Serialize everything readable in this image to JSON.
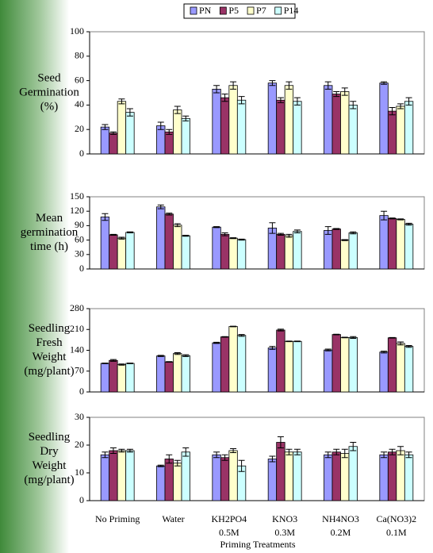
{
  "chart_data": [
    {
      "type": "bar",
      "ylabel": [
        "Seed",
        "Germination",
        "(%)"
      ],
      "ylim": [
        0,
        100
      ],
      "yticks": [
        0,
        20,
        40,
        60,
        80,
        100
      ],
      "legend": "top",
      "series": [
        {
          "name": "PN",
          "color": "#9999ff",
          "values": [
            22,
            23,
            53,
            58,
            56,
            58
          ],
          "errors": [
            2,
            3,
            3,
            2,
            3,
            1
          ]
        },
        {
          "name": "P5",
          "color": "#993366",
          "values": [
            17,
            18,
            46,
            44,
            49,
            35
          ],
          "errors": [
            1,
            2,
            3,
            2,
            2,
            3
          ]
        },
        {
          "name": "P7",
          "color": "#ffffcc",
          "values": [
            43,
            36,
            56,
            56,
            51,
            39
          ],
          "errors": [
            2,
            3,
            3,
            3,
            3,
            2
          ]
        },
        {
          "name": "P14",
          "color": "#ccffff",
          "values": [
            34,
            29,
            44,
            43,
            40,
            43
          ],
          "errors": [
            3,
            2,
            3,
            3,
            3,
            3
          ]
        }
      ]
    },
    {
      "type": "bar",
      "ylabel": [
        "Mean",
        "germination",
        "time (h)"
      ],
      "ylim": [
        0,
        150
      ],
      "yticks": [
        0,
        30,
        60,
        90,
        120,
        150
      ],
      "series": [
        {
          "color": "#9999ff",
          "values": [
            108,
            129,
            87,
            85,
            80,
            111
          ],
          "errors": [
            7,
            4,
            1,
            11,
            8,
            9
          ]
        },
        {
          "color": "#993366",
          "values": [
            71,
            114,
            72,
            72,
            83,
            105
          ],
          "errors": [
            1,
            2,
            3,
            2,
            1,
            1
          ]
        },
        {
          "color": "#ffffcc",
          "values": [
            64,
            91,
            64,
            69,
            60,
            103
          ],
          "errors": [
            2,
            3,
            1,
            3,
            1,
            1
          ]
        },
        {
          "color": "#ccffff",
          "values": [
            76,
            69,
            61,
            78,
            75,
            93
          ],
          "errors": [
            1,
            1,
            1,
            3,
            2,
            2
          ]
        }
      ]
    },
    {
      "type": "bar",
      "ylabel": [
        "Seedling",
        "Fresh",
        "Weight",
        "(mg/plant)"
      ],
      "ylim": [
        0,
        280
      ],
      "yticks": [
        0,
        70,
        140,
        210,
        280
      ],
      "series": [
        {
          "color": "#9999ff",
          "values": [
            96,
            121,
            165,
            148,
            141,
            134
          ],
          "errors": [
            1,
            2,
            2,
            5,
            3,
            3
          ]
        },
        {
          "color": "#993366",
          "values": [
            106,
            101,
            185,
            208,
            193,
            182
          ],
          "errors": [
            3,
            1,
            1,
            3,
            1,
            1
          ]
        },
        {
          "color": "#ffffcc",
          "values": [
            92,
            129,
            220,
            170,
            183,
            163
          ],
          "errors": [
            2,
            3,
            1,
            1,
            1,
            5
          ]
        },
        {
          "color": "#ccffff",
          "values": [
            96,
            122,
            190,
            170,
            183,
            153
          ],
          "errors": [
            1,
            3,
            3,
            1,
            3,
            3
          ]
        }
      ]
    },
    {
      "type": "bar",
      "ylabel": [
        "Seedling",
        "Dry",
        "Weight",
        "(mg/plant)"
      ],
      "ylim": [
        0,
        30
      ],
      "yticks": [
        0,
        10,
        20,
        30
      ],
      "categories": [
        [
          "No Priming"
        ],
        [
          "Water"
        ],
        [
          "KH2PO4",
          "0.5M"
        ],
        [
          "KNO3",
          "0.3M"
        ],
        [
          "NH4NO3",
          "0.2M"
        ],
        [
          "Ca(NO3)2",
          "0.1M"
        ]
      ],
      "xlabel": "Priming Treatments",
      "series": [
        {
          "color": "#9999ff",
          "values": [
            16.5,
            12.5,
            16.5,
            15,
            16.5,
            16.5
          ],
          "errors": [
            1,
            0.3,
            1,
            1,
            1,
            1
          ]
        },
        {
          "color": "#993366",
          "values": [
            18,
            15,
            15.5,
            21,
            17.5,
            17.5
          ],
          "errors": [
            1,
            1.5,
            1,
            2,
            1,
            1
          ]
        },
        {
          "color": "#ffffcc",
          "values": [
            18,
            13.5,
            18,
            17.5,
            17,
            18
          ],
          "errors": [
            0.5,
            1,
            0.7,
            1,
            1.5,
            1.5
          ]
        },
        {
          "color": "#ccffff",
          "values": [
            18,
            17.5,
            12.5,
            17.5,
            19.5,
            16.5
          ],
          "errors": [
            0.5,
            1.5,
            2,
            1,
            1.5,
            1
          ]
        }
      ]
    }
  ]
}
